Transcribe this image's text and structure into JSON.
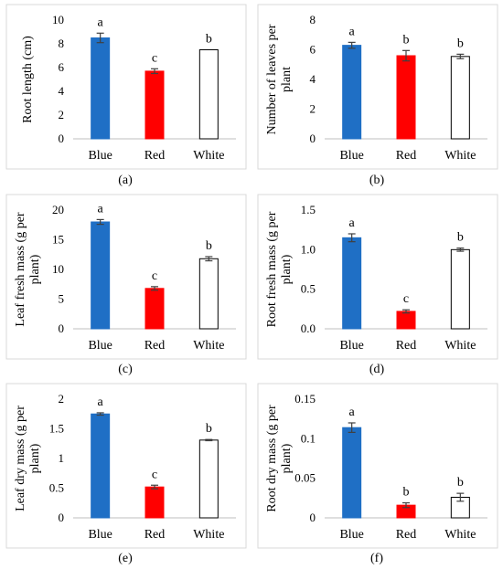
{
  "colors": {
    "Blue": "#1f6fc5",
    "Red": "#ff0000",
    "White": "#ffffff"
  },
  "chart_data": [
    {
      "type": "bar",
      "caption": "(a)",
      "ylabel": "Root length (cm)",
      "categories": [
        "Blue",
        "Red",
        "White"
      ],
      "values": [
        8.5,
        5.7,
        7.5
      ],
      "errors": [
        0.4,
        0.2,
        0.0
      ],
      "letters": [
        "a",
        "c",
        "b"
      ],
      "ylim": [
        0,
        10
      ],
      "yticks": [
        0,
        2,
        4,
        6,
        8,
        10
      ],
      "ytick_labels": [
        "0",
        "2",
        "4",
        "6",
        "8",
        "10"
      ]
    },
    {
      "type": "bar",
      "caption": "(b)",
      "ylabel": "Number of leaves per plant",
      "categories": [
        "Blue",
        "Red",
        "White"
      ],
      "values": [
        6.3,
        5.6,
        5.55
      ],
      "errors": [
        0.2,
        0.35,
        0.15
      ],
      "letters": [
        "a",
        "b",
        "b"
      ],
      "ylim": [
        0,
        8
      ],
      "yticks": [
        0,
        2,
        4,
        6,
        8
      ],
      "ytick_labels": [
        "0",
        "2",
        "4",
        "6",
        "8"
      ]
    },
    {
      "type": "bar",
      "caption": "(c)",
      "ylabel": "Leaf fresh mass (g per plant)",
      "categories": [
        "Blue",
        "Red",
        "White"
      ],
      "values": [
        18.0,
        6.8,
        11.8
      ],
      "errors": [
        0.4,
        0.3,
        0.35
      ],
      "letters": [
        "a",
        "c",
        "b"
      ],
      "ylim": [
        0,
        20
      ],
      "yticks": [
        0,
        5,
        10,
        15,
        20
      ],
      "ytick_labels": [
        "0",
        "5",
        "10",
        "15",
        "20"
      ]
    },
    {
      "type": "bar",
      "caption": "(d)",
      "ylabel": "Root fresh mass (g per plant)",
      "categories": [
        "Blue",
        "Red",
        "White"
      ],
      "values": [
        1.15,
        0.22,
        1.0
      ],
      "errors": [
        0.05,
        0.02,
        0.02
      ],
      "letters": [
        "a",
        "c",
        "b"
      ],
      "ylim": [
        0,
        1.5
      ],
      "yticks": [
        0,
        0.5,
        1.0,
        1.5
      ],
      "ytick_labels": [
        "0.0",
        "0.5",
        "1.0",
        "1.5"
      ]
    },
    {
      "type": "bar",
      "caption": "(e)",
      "ylabel": "Leaf dry mass (g per plant)",
      "categories": [
        "Blue",
        "Red",
        "White"
      ],
      "values": [
        1.75,
        0.52,
        1.31
      ],
      "errors": [
        0.02,
        0.03,
        0.01
      ],
      "letters": [
        "a",
        "c",
        "b"
      ],
      "ylim": [
        0,
        2
      ],
      "yticks": [
        0,
        0.5,
        1,
        1.5,
        2
      ],
      "ytick_labels": [
        "0",
        "0.5",
        "1",
        "1.5",
        "2"
      ]
    },
    {
      "type": "bar",
      "caption": "(f)",
      "ylabel": "Root dry mass (g per plant)",
      "categories": [
        "Blue",
        "Red",
        "White"
      ],
      "values": [
        0.114,
        0.016,
        0.026
      ],
      "errors": [
        0.006,
        0.003,
        0.005
      ],
      "letters": [
        "a",
        "b",
        "b"
      ],
      "ylim": [
        0,
        0.15
      ],
      "yticks": [
        0,
        0.05,
        0.1,
        0.15
      ],
      "ytick_labels": [
        "0",
        "0.05",
        "0.1",
        "0.15"
      ]
    }
  ]
}
